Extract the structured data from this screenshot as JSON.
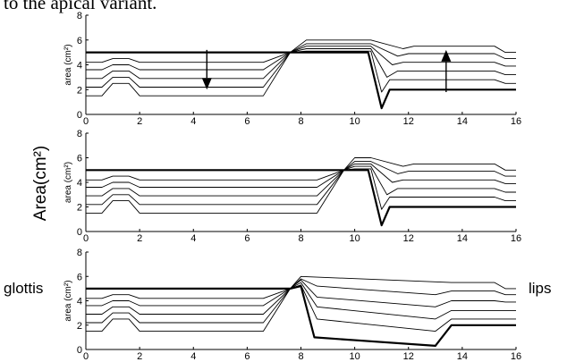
{
  "caption_fragment": "to the apical variant.",
  "shared_ylabel": "Area(cm²)",
  "left_label": "glottis",
  "right_label": "lips",
  "chart_data": [
    {
      "type": "line",
      "ylabel": "area (cm²)",
      "xlim": [
        0,
        16
      ],
      "ylim": [
        0,
        8
      ],
      "xticks": [
        "0",
        "2",
        "4",
        "6",
        "8",
        "10",
        "12",
        "14",
        "16"
      ],
      "yticks": [
        "0",
        "2",
        "4",
        "6",
        "8"
      ],
      "grid": false,
      "series": [
        {
          "bold": true,
          "x": [
            0,
            7.6,
            10.5,
            11.0,
            11.3,
            16
          ],
          "y": [
            5,
            5,
            5,
            0.5,
            2,
            2
          ]
        },
        {
          "bold": false,
          "x": [
            0,
            0.6,
            1.0,
            1.6,
            2.0,
            6.6,
            7.6,
            8.2,
            10.6,
            11.0,
            11.3,
            15.2,
            15.6,
            16
          ],
          "y": [
            1.5,
            1.5,
            2.5,
            2.5,
            1.5,
            1.5,
            5,
            5.1,
            5.1,
            1.8,
            2.8,
            2.8,
            2.5,
            2.5
          ]
        },
        {
          "bold": false,
          "x": [
            0,
            0.6,
            1.0,
            1.6,
            2.0,
            6.6,
            7.6,
            8.2,
            10.6,
            11.2,
            11.6,
            15.2,
            15.6,
            16
          ],
          "y": [
            2.2,
            2.2,
            3.0,
            3.0,
            2.2,
            2.2,
            5,
            5.3,
            5.3,
            3.0,
            3.5,
            3.5,
            3.2,
            3.2
          ]
        },
        {
          "bold": false,
          "x": [
            0,
            0.6,
            1.0,
            1.6,
            2.0,
            6.6,
            7.6,
            8.2,
            10.6,
            11.4,
            11.8,
            15.2,
            15.6,
            16
          ],
          "y": [
            2.9,
            2.9,
            3.5,
            3.5,
            2.9,
            2.9,
            5,
            5.5,
            5.5,
            4.0,
            4.2,
            4.2,
            3.9,
            3.9
          ]
        },
        {
          "bold": false,
          "x": [
            0,
            0.6,
            1.0,
            1.6,
            2.0,
            6.6,
            7.6,
            8.2,
            10.6,
            11.6,
            12.0,
            15.2,
            15.6,
            16
          ],
          "y": [
            3.6,
            3.6,
            4.0,
            4.0,
            3.6,
            3.6,
            5,
            5.7,
            5.7,
            4.7,
            4.9,
            4.9,
            4.5,
            4.5
          ]
        },
        {
          "bold": false,
          "x": [
            0,
            0.6,
            1.0,
            1.6,
            2.0,
            6.6,
            7.6,
            8.2,
            10.6,
            11.8,
            12.2,
            15.2,
            15.6,
            16
          ],
          "y": [
            4.2,
            4.2,
            4.5,
            4.5,
            4.2,
            4.2,
            5,
            6.0,
            6.0,
            5.3,
            5.5,
            5.5,
            5.0,
            5.0
          ]
        }
      ],
      "arrows": [
        {
          "x": 4.5,
          "from": 5.2,
          "to": 2.0
        },
        {
          "x": 13.4,
          "from": 1.8,
          "to": 5.2
        }
      ]
    },
    {
      "type": "line",
      "ylabel": "area (cm²)",
      "xlim": [
        0,
        16
      ],
      "ylim": [
        0,
        8
      ],
      "xticks": [
        "0",
        "2",
        "4",
        "6",
        "8",
        "10",
        "12",
        "14",
        "16"
      ],
      "yticks": [
        "0",
        "2",
        "4",
        "6",
        "8"
      ],
      "grid": false,
      "series": [
        {
          "bold": true,
          "x": [
            0,
            9.6,
            10.5,
            11.0,
            11.3,
            16
          ],
          "y": [
            5,
            5,
            5,
            0.5,
            2,
            2
          ]
        },
        {
          "bold": false,
          "x": [
            0,
            0.6,
            1.0,
            1.6,
            2.0,
            8.6,
            9.6,
            10.0,
            10.6,
            11.0,
            11.3,
            15.2,
            15.6,
            16
          ],
          "y": [
            1.5,
            1.5,
            2.5,
            2.5,
            1.5,
            1.5,
            5,
            5.1,
            5.1,
            1.8,
            2.8,
            2.8,
            2.5,
            2.5
          ]
        },
        {
          "bold": false,
          "x": [
            0,
            0.6,
            1.0,
            1.6,
            2.0,
            8.6,
            9.6,
            10.0,
            10.6,
            11.2,
            11.6,
            15.2,
            15.6,
            16
          ],
          "y": [
            2.2,
            2.2,
            3.0,
            3.0,
            2.2,
            2.2,
            5,
            5.3,
            5.3,
            3.0,
            3.5,
            3.5,
            3.2,
            3.2
          ]
        },
        {
          "bold": false,
          "x": [
            0,
            0.6,
            1.0,
            1.6,
            2.0,
            8.6,
            9.6,
            10.0,
            10.6,
            11.4,
            11.8,
            15.2,
            15.6,
            16
          ],
          "y": [
            2.9,
            2.9,
            3.5,
            3.5,
            2.9,
            2.9,
            5,
            5.5,
            5.5,
            4.0,
            4.2,
            4.2,
            3.9,
            3.9
          ]
        },
        {
          "bold": false,
          "x": [
            0,
            0.6,
            1.0,
            1.6,
            2.0,
            8.6,
            9.6,
            10.0,
            10.6,
            11.6,
            12.0,
            15.2,
            15.6,
            16
          ],
          "y": [
            3.6,
            3.6,
            4.0,
            4.0,
            3.6,
            3.6,
            5,
            5.7,
            5.7,
            4.7,
            4.9,
            4.9,
            4.5,
            4.5
          ]
        },
        {
          "bold": false,
          "x": [
            0,
            0.6,
            1.0,
            1.6,
            2.0,
            8.6,
            9.6,
            10.0,
            10.6,
            11.8,
            12.2,
            15.2,
            15.6,
            16
          ],
          "y": [
            4.2,
            4.2,
            4.5,
            4.5,
            4.2,
            4.2,
            5,
            6.0,
            6.0,
            5.3,
            5.5,
            5.5,
            5.0,
            5.0
          ]
        }
      ],
      "arrows": []
    },
    {
      "type": "line",
      "ylabel": "area (cm²)",
      "xlim": [
        0,
        16
      ],
      "ylim": [
        0,
        8
      ],
      "xticks": [
        "0",
        "2",
        "4",
        "6",
        "8",
        "10",
        "12",
        "14",
        "16"
      ],
      "yticks": [
        "0",
        "2",
        "4",
        "6",
        "8"
      ],
      "grid": false,
      "series": [
        {
          "bold": true,
          "x": [
            0,
            7.6,
            8.0,
            8.5,
            13.0,
            13.6,
            16
          ],
          "y": [
            5,
            5,
            5.2,
            1.0,
            0.3,
            2.0,
            2.0
          ]
        },
        {
          "bold": false,
          "x": [
            0,
            0.6,
            1.0,
            1.6,
            2.0,
            6.6,
            7.6,
            8.0,
            8.6,
            13.0,
            13.6,
            16
          ],
          "y": [
            1.5,
            1.5,
            2.5,
            2.5,
            1.5,
            1.5,
            5,
            5.3,
            2.5,
            1.5,
            2.5,
            2.5
          ]
        },
        {
          "bold": false,
          "x": [
            0,
            0.6,
            1.0,
            1.6,
            2.0,
            6.6,
            7.6,
            8.0,
            8.6,
            13.0,
            13.6,
            16
          ],
          "y": [
            2.2,
            2.2,
            3.0,
            3.0,
            2.2,
            2.2,
            5,
            5.5,
            3.5,
            2.5,
            3.2,
            3.2
          ]
        },
        {
          "bold": false,
          "x": [
            0,
            0.6,
            1.0,
            1.6,
            2.0,
            6.6,
            7.6,
            8.0,
            8.6,
            13.0,
            13.6,
            15.2,
            15.6,
            16
          ],
          "y": [
            2.9,
            2.9,
            3.5,
            3.5,
            2.9,
            2.9,
            5,
            5.7,
            4.3,
            3.5,
            4.0,
            4.0,
            3.9,
            3.9
          ]
        },
        {
          "bold": false,
          "x": [
            0,
            0.6,
            1.0,
            1.6,
            2.0,
            6.6,
            7.6,
            8.0,
            8.6,
            13.0,
            13.6,
            15.2,
            15.6,
            16
          ],
          "y": [
            3.6,
            3.6,
            4.0,
            4.0,
            3.6,
            3.6,
            5,
            5.8,
            5.2,
            4.5,
            4.8,
            4.8,
            4.5,
            4.5
          ]
        },
        {
          "bold": false,
          "x": [
            0,
            0.6,
            1.0,
            1.6,
            2.0,
            6.6,
            7.6,
            8.0,
            13.6,
            15.2,
            15.6,
            16
          ],
          "y": [
            4.2,
            4.2,
            4.5,
            4.5,
            4.2,
            4.2,
            5,
            6.0,
            5.5,
            5.5,
            5.0,
            5.0
          ]
        }
      ],
      "arrows": []
    }
  ]
}
